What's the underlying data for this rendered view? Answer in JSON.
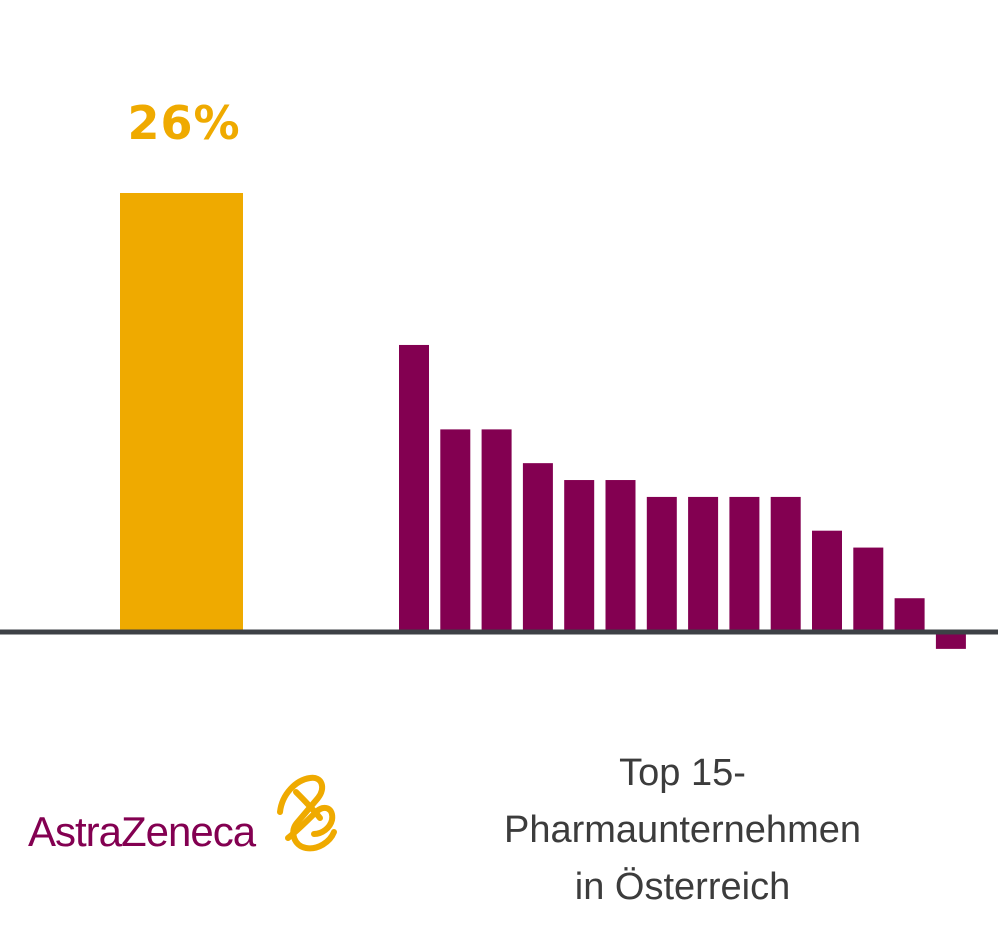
{
  "chart_data": {
    "type": "bar",
    "highlight": {
      "name": "AstraZeneca",
      "value": 26,
      "label": "26%",
      "color": "#EFAA00"
    },
    "comparison": {
      "caption_lines": [
        "Top 15-",
        "Pharmaunternehmen",
        "in Österreich"
      ],
      "color": "#830051",
      "values": [
        17,
        12,
        12,
        10,
        9,
        9,
        8,
        8,
        8,
        8,
        6,
        5,
        2,
        -1
      ]
    },
    "baseline_color": "#3d4146",
    "ylim": [
      -2,
      26
    ],
    "grid": false,
    "legend": "none"
  },
  "logo": {
    "text": "AstraZeneca",
    "icon": "astrazeneca-symbol-icon",
    "text_color": "#830051",
    "symbol_color": "#EFAA00"
  }
}
